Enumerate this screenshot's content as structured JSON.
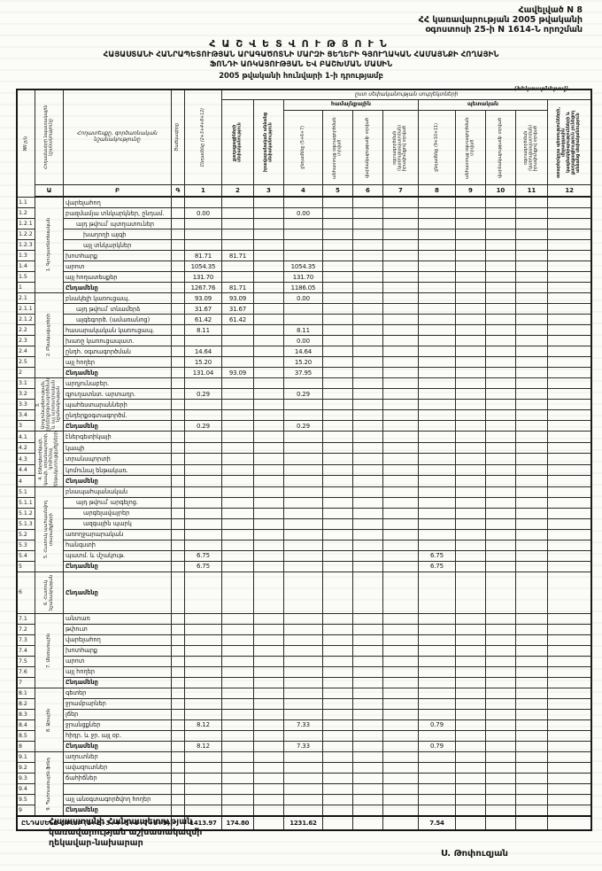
{
  "doc": {
    "appendix_lines": [
      "Հավելված N 8",
      "ՀՀ կառավարության 2005 թվականի",
      "օգոստոսի 25-ի N 1614-Ն որոշման"
    ],
    "title_main": "ՀԱՇՎԵՏՎՈՒԹՅՈՒՆ",
    "title_line2": "ՀԱՅԱՍՏԱՆԻ ՀԱՆՐԱՊԵՏՈՒԹՅԱՆ ԱՐԱԳԱԾՈՏՆԻ ՄԱՐԶԻ ՑԵՂԵՐԻ ԳՅՈՒՂԱԿԱՆ ՀԱՄԱՅՆՔԻ ՀՈՂԱՅԻՆ",
    "title_line3": "ՖՈՆԴԻ ԱՌԿԱՅՈՒԹՅԱՆ ԵՎ ԲԱՇԽՄԱՆ ՄԱՍԻՆ",
    "title_date": "2005 թվականի հունվարի 1-ի դրությամբ",
    "units_note": "(հեկտարներով)"
  },
  "table": {
    "header": {
      "nn": "NN ը/կ",
      "col_a": "Հողամասերի նպատակային նշանակությունը",
      "col_b": "Հողատեսքը, գործառնական նշանակությունը",
      "col_g": "Ծածկագիրը",
      "span_title": "ըստ սեփականության սուբյեկտների",
      "group_community": "համայնքային",
      "group_state": "պետական",
      "c1": "Ընդամենը (2+3+4+8+12)",
      "c2": "քաղաքացիների սեփականություն",
      "c3": "իրավաբանական անձանց սեփականություն",
      "c4": "ընդամենը (5+6+7)",
      "c5": "անհատույց օգտագործման տրված",
      "c6": "վարձակալությամբ տրված",
      "c7": "օգտագործման (կառուցապատման) իրավունքով տրված",
      "c8": "ընդամենը (9+10+11)",
      "c9": "անհատույց օգտագործման տրված",
      "c10": "վարձակալությամբ տրված",
      "c11": "օգտագործման (կառուցապատման) իրավունքով տրված",
      "c12": "օտարերկրյա պետությունների, միջազգային կազմակերպությունների և քաղաքացիություն չունեցող անձանց սեփականություն",
      "index_row": [
        "Ա",
        "Բ",
        "Գ",
        "1",
        "2",
        "3",
        "4",
        "5",
        "6",
        "7",
        "8",
        "9",
        "10",
        "11",
        "12"
      ]
    },
    "sections": [
      {
        "name": "1. Գյուղատնտեսական",
        "rows": [
          {
            "nn": "1.1",
            "label": "վարելահող",
            "values": {}
          },
          {
            "nn": "1.2",
            "label": "բազմամյա տնկարկներ, ընդամ.",
            "values": {
              "c1": "0.00",
              "c4": "0.00"
            }
          },
          {
            "nn": "1.2.1",
            "label": "այդ թվում՝ պտղատուներ",
            "indent": 1,
            "values": {}
          },
          {
            "nn": "1.2.2",
            "label": "խաղողի այգի",
            "indent": 2,
            "values": {}
          },
          {
            "nn": "1.2.3",
            "label": "այլ տնկարկներ",
            "indent": 2,
            "values": {}
          },
          {
            "nn": "1.3",
            "label": "խոտհարք",
            "values": {
              "c1": "81.71",
              "c2": "81.71"
            }
          },
          {
            "nn": "1.4",
            "label": "արոտ",
            "values": {
              "c1": "1054.35",
              "c4": "1054.35"
            }
          },
          {
            "nn": "1.5",
            "label": "այլ հողատեսքեր",
            "values": {
              "c1": "131.70",
              "c4": "131.70"
            }
          },
          {
            "nn": "1",
            "label": "Ընդամենը",
            "total": true,
            "values": {
              "c1": "1267.76",
              "c2": "81.71",
              "c4": "1186.05"
            }
          }
        ]
      },
      {
        "name": "2. Բնակավայրերի",
        "rows": [
          {
            "nn": "2.1",
            "label": "բնակելի կառուցապ.",
            "values": {
              "c1": "93.09",
              "c2": "93.09",
              "c4": "0.00"
            }
          },
          {
            "nn": "2.1.1",
            "label": "այդ թվում՝ տնամերձ",
            "indent": 1,
            "values": {
              "c1": "31.67",
              "c2": "31.67"
            }
          },
          {
            "nn": "2.1.2",
            "label": "այգեգործ. (ամառանոց)",
            "indent": 1,
            "values": {
              "c1": "61.42",
              "c2": "61.42"
            }
          },
          {
            "nn": "2.2",
            "label": "հասարակական կառուցապ.",
            "values": {
              "c1": "8.11",
              "c4": "8.11"
            }
          },
          {
            "nn": "2.3",
            "label": "խառը կառուցապատ.",
            "values": {
              "c4": "0.00"
            }
          },
          {
            "nn": "2.4",
            "label": "ընդհ. օգտագործման",
            "values": {
              "c1": "14.64",
              "c4": "14.64"
            }
          },
          {
            "nn": "2.5",
            "label": "այլ հողեր",
            "values": {
              "c1": "15.20",
              "c4": "15.20"
            }
          },
          {
            "nn": "2",
            "label": "Ընդամենը",
            "total": true,
            "values": {
              "c1": "131.04",
              "c2": "93.09",
              "c4": "37.95"
            }
          }
        ]
      },
      {
        "name": "3. Արդյունաբերության, ընդերքօգտագործման և այլ արտադրական նշանակության",
        "rows": [
          {
            "nn": "3.1",
            "label": "արդյունաբեր.",
            "values": {}
          },
          {
            "nn": "3.2",
            "label": "գյուղատնտ. արտադր.",
            "values": {
              "c1": "0.29",
              "c4": "0.29"
            }
          },
          {
            "nn": "3.3",
            "label": "պահեստարանների",
            "values": {}
          },
          {
            "nn": "3.4",
            "label": "ընդերքօգտագործմ.",
            "values": {}
          },
          {
            "nn": "3",
            "label": "Ընդամենը",
            "total": true,
            "values": {
              "c1": "0.29",
              "c4": "0.29"
            }
          }
        ]
      },
      {
        "name": "4. Էներգետիկայի, կապի, տրանսպորտի, կոմունալ ենթակառուցվածքների",
        "rows": [
          {
            "nn": "4.1",
            "label": "էներգետիկայի",
            "values": {}
          },
          {
            "nn": "4.2",
            "label": "կապի",
            "values": {}
          },
          {
            "nn": "4.3",
            "label": "տրանսպորտի",
            "values": {}
          },
          {
            "nn": "4.4",
            "label": "կոմունալ ենթակառ.",
            "values": {}
          },
          {
            "nn": "4",
            "label": "Ընդամենը",
            "total": true,
            "values": {}
          }
        ]
      },
      {
        "name": "5. Հատուկ պահպանվող տարածքների",
        "rows": [
          {
            "nn": "5.1",
            "label": "բնապահպանական",
            "values": {}
          },
          {
            "nn": "5.1.1",
            "label": "այդ թվում՝ արգելոց.",
            "indent": 1,
            "values": {}
          },
          {
            "nn": "5.1.2",
            "label": "արգելավայրեր",
            "indent": 2,
            "values": {}
          },
          {
            "nn": "5.1.3",
            "label": "ազգային պարկ",
            "indent": 2,
            "values": {}
          },
          {
            "nn": "5.2",
            "label": "առողջարարական",
            "values": {}
          },
          {
            "nn": "5.3",
            "label": "հանգստի",
            "values": {}
          },
          {
            "nn": "5.4",
            "label": "պատմ. և մշակութ.",
            "values": {
              "c1": "6.75",
              "c8": "6.75"
            }
          },
          {
            "nn": "5",
            "label": "Ընդամենը",
            "total": true,
            "values": {
              "c1": "6.75",
              "c8": "6.75"
            }
          }
        ]
      },
      {
        "name": "6. Հատուկ նշանակության",
        "rows": [
          {
            "nn": "6",
            "label": "Ընդամենը",
            "total": true,
            "tall": true,
            "values": {}
          }
        ]
      },
      {
        "name": "7. Անտառային",
        "rows": [
          {
            "nn": "7.1",
            "label": "անտառ",
            "values": {}
          },
          {
            "nn": "7.2",
            "label": "թփուտ",
            "values": {}
          },
          {
            "nn": "7.3",
            "label": "վարելահող",
            "values": {}
          },
          {
            "nn": "7.4",
            "label": "խոտհարք",
            "values": {}
          },
          {
            "nn": "7.5",
            "label": "արոտ",
            "values": {}
          },
          {
            "nn": "7.6",
            "label": "այլ հողեր",
            "values": {}
          },
          {
            "nn": "7",
            "label": "Ընդամենը",
            "total": true,
            "values": {}
          }
        ]
      },
      {
        "name": "8. Ջրային",
        "rows": [
          {
            "nn": "8.1",
            "label": "գետեր",
            "values": {}
          },
          {
            "nn": "8.2",
            "label": "ջրամբարներ",
            "values": {}
          },
          {
            "nn": "8.3",
            "label": "լճեր",
            "values": {}
          },
          {
            "nn": "8.4",
            "label": "ջրանցքներ",
            "values": {
              "c1": "8.12",
              "c4": "7.33",
              "c8": "0.79"
            }
          },
          {
            "nn": "8.5",
            "label": "հիդր. և ջր. այլ օբ.",
            "values": {}
          },
          {
            "nn": "8",
            "label": "Ընդամենը",
            "total": true,
            "values": {
              "c1": "8.12",
              "c4": "7.33",
              "c8": "0.79"
            }
          }
        ]
      },
      {
        "name": "9. Պահուստային ֆոնդ",
        "rows": [
          {
            "nn": "9.1",
            "label": "աղուտներ",
            "values": {}
          },
          {
            "nn": "9.2",
            "label": "ավազուտներ",
            "values": {}
          },
          {
            "nn": "9.3",
            "label": "ճահիճներ",
            "values": {}
          },
          {
            "nn": "9.4",
            "label": "",
            "values": {}
          },
          {
            "nn": "9.5",
            "label": "այլ անօգտագործվող հողեր",
            "values": {}
          },
          {
            "nn": "9",
            "label": "Ընդամենը",
            "total": true,
            "values": {}
          }
        ]
      }
    ],
    "grand_total": {
      "label": "ԸՆԴԱՄԵՆԸ ՀՈՂԵՐ (1+2+3+4+5+6+7+8+9)",
      "values": {
        "c1": "1413.97",
        "c2": "174.80",
        "c4": "1231.62",
        "c8": "7.54"
      }
    }
  },
  "footer": {
    "left_lines": [
      "Հայաստանի Հանրապետության",
      "կառավարության աշխատակազմի",
      "ղեկավար-նախարար"
    ],
    "signature": "Ս. Թոփուզյան"
  }
}
